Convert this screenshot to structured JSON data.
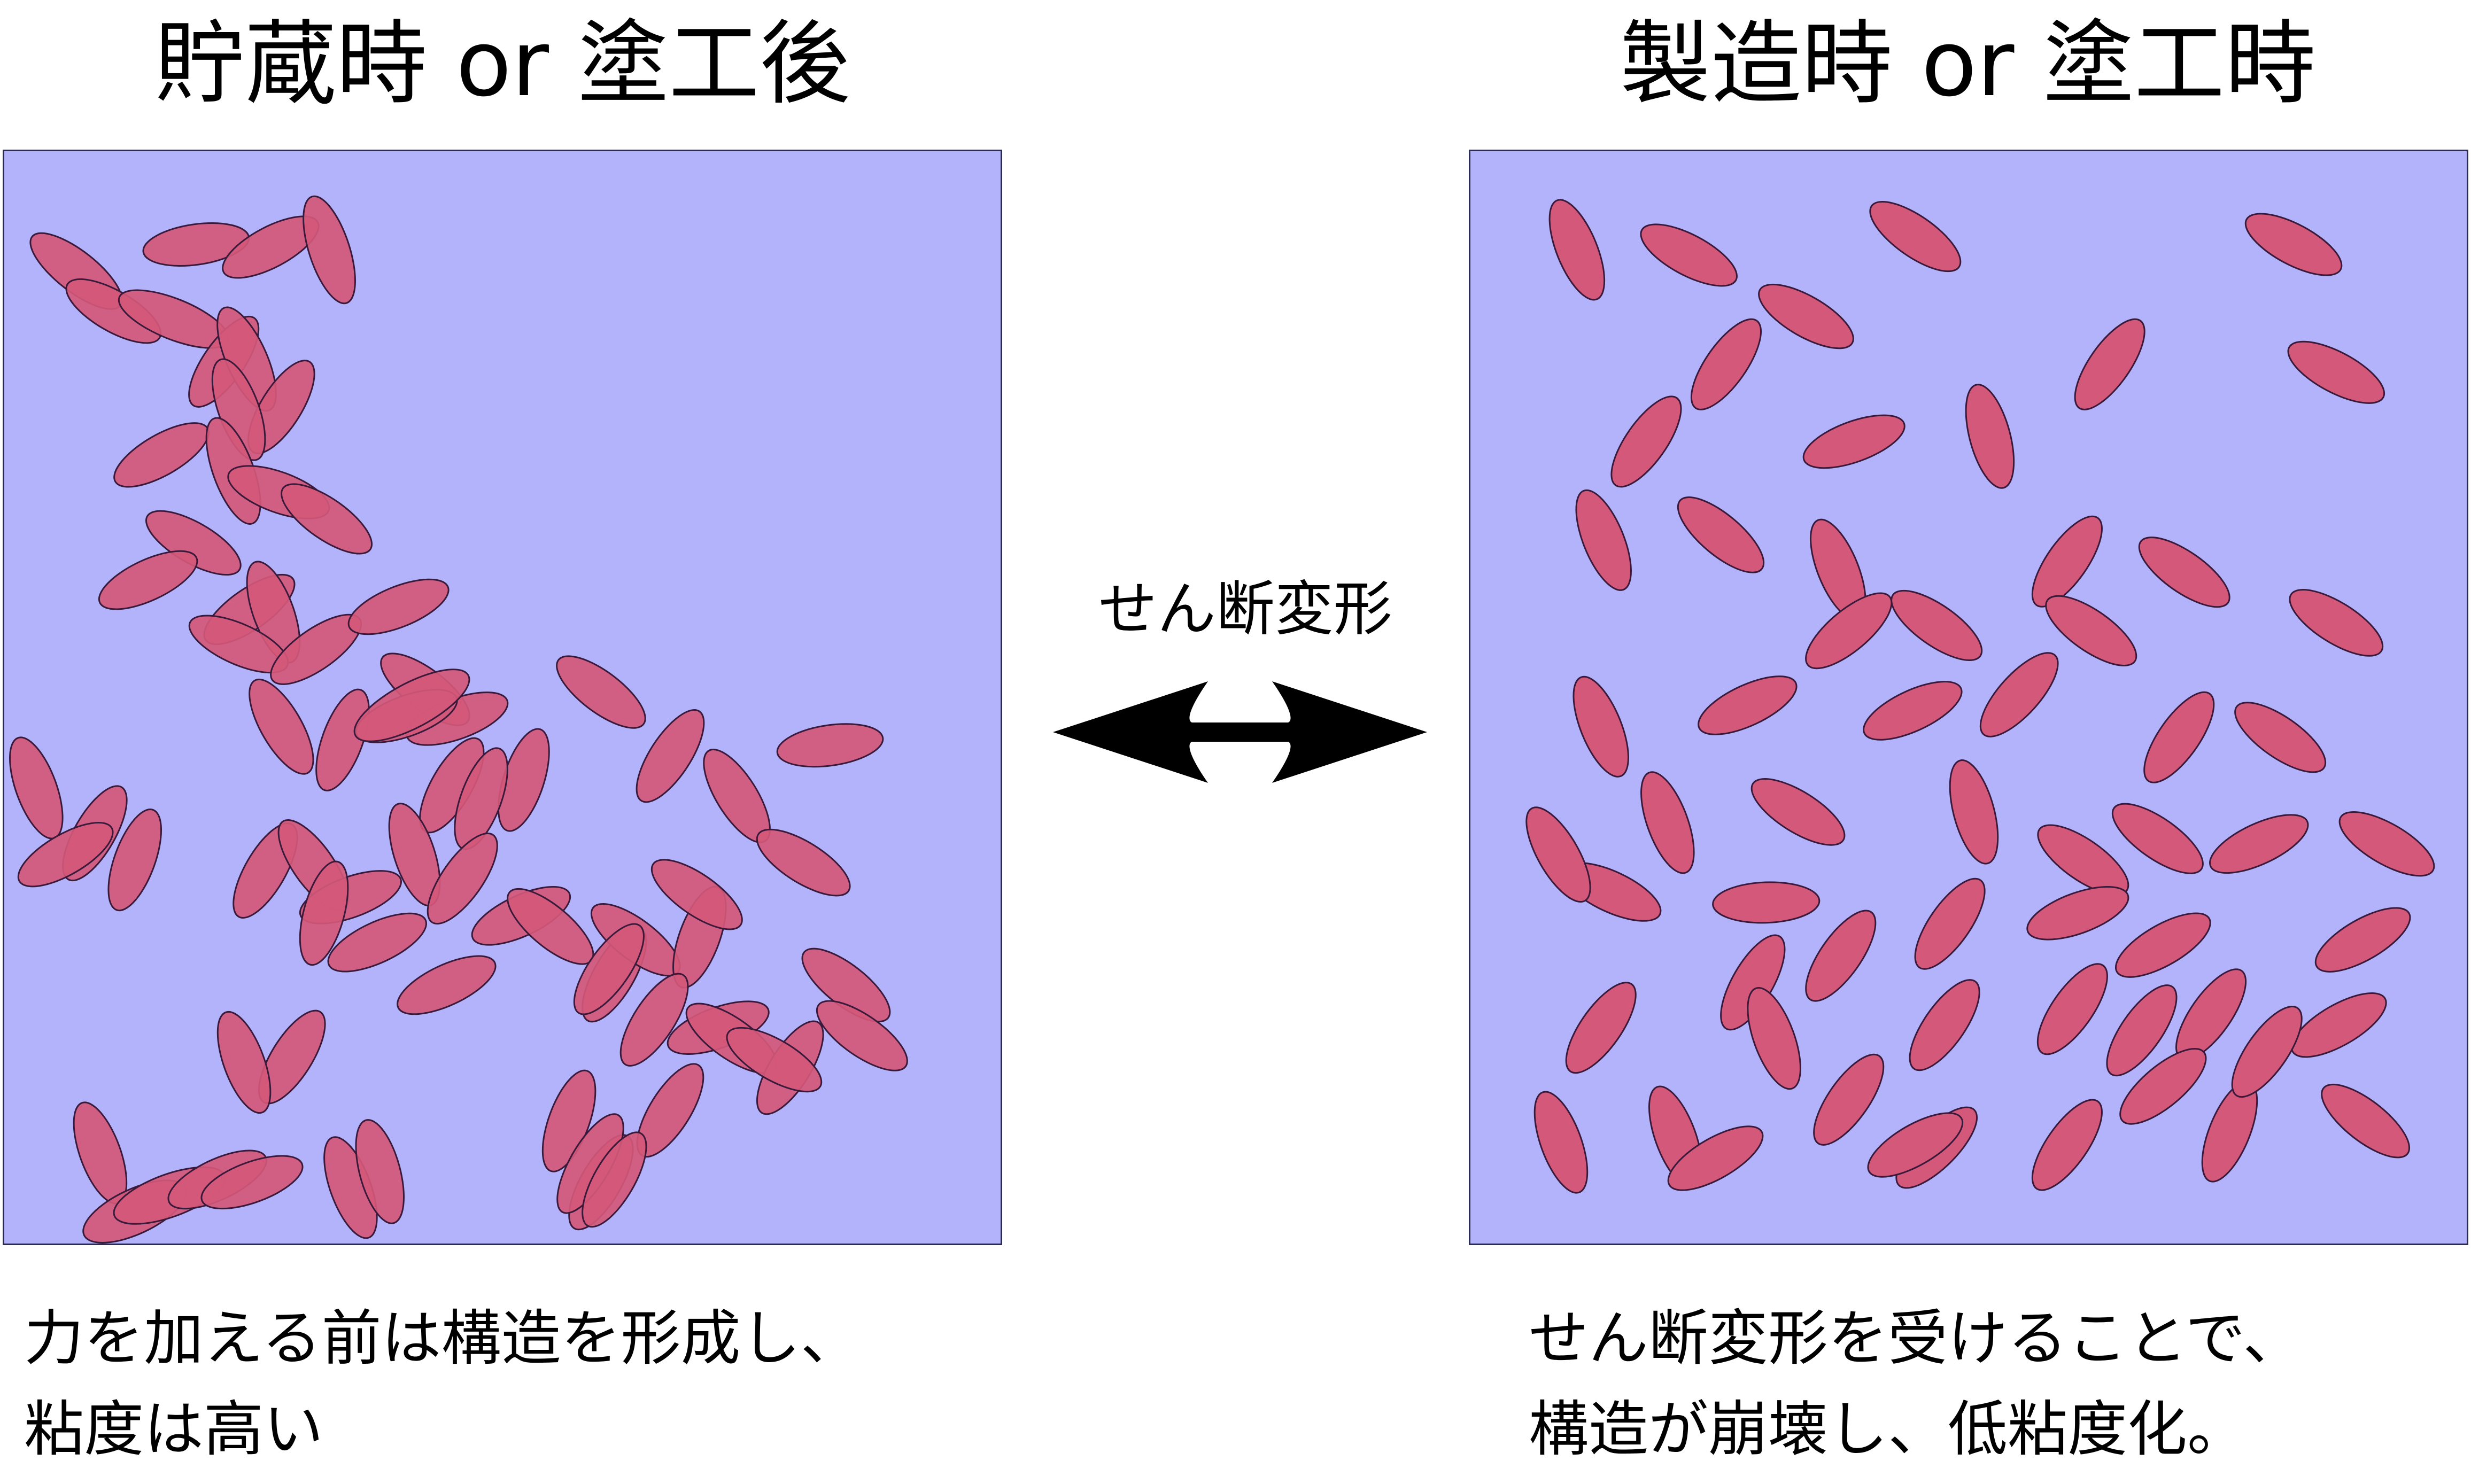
{
  "left": {
    "title": "貯蔵時 or 塗工後",
    "caption_line1": "力を加える前は構造を形成し、",
    "caption_line2": "粘度は高い"
  },
  "right": {
    "title": "製造時 or 塗工時",
    "caption_line1": "せん断変形を受けることで、",
    "caption_line2": "構造が崩壊し、低粘度化。"
  },
  "arrow": {
    "label": "せん断変形"
  },
  "colors": {
    "panel_background": "#b3b3fb",
    "particle_fill": "#d4587a",
    "particle_stroke": "#3a1a3a",
    "arrow": "#000000",
    "text": "#000000"
  }
}
